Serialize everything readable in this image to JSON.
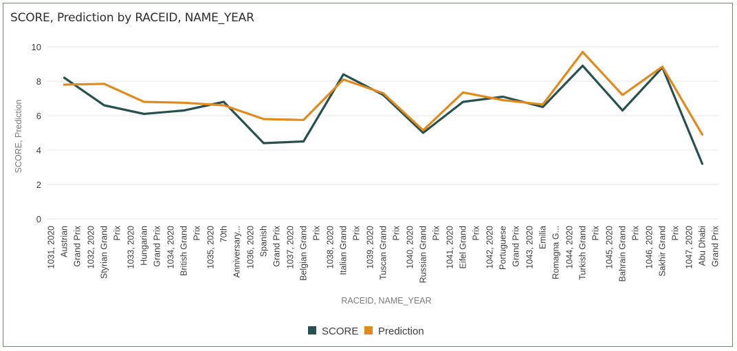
{
  "chart_data": {
    "type": "line",
    "title": "SCORE, Prediction by RACEID, NAME_YEAR",
    "xlabel": "RACEID, NAME_YEAR",
    "ylabel": "SCORE, Prediction",
    "ylim": [
      0,
      10
    ],
    "yticks": [
      0,
      2,
      4,
      6,
      8,
      10
    ],
    "grid": true,
    "legend_position": "bottom",
    "categories": [
      "1031, 2020|Austrian|Grand Prix",
      "1032, 2020|Styrian Grand|Prix",
      "1033, 2020|Hungarian|Grand Prix",
      "1034, 2020|British Grand|Prix",
      "1035, 2020|70th|Anniversary...",
      "1036, 2020|Spanish|Grand Prix",
      "1037, 2020|Belgian Grand|Prix",
      "1038, 2020|Italian Grand|Prix",
      "1039, 2020|Tuscan Grand|Prix",
      "1040, 2020|Russian Grand|Prix",
      "1041, 2020|Eifel Grand|Prix",
      "1042, 2020|Portuguese|Grand Prix",
      "1043, 2020|Emilia|Romagna G...",
      "1044, 2020|Turkish Grand|Prix",
      "1045, 2020|Bahrain Grand|Prix",
      "1046, 2020|Sakhir Grand|Prix",
      "1047, 2020|Abu Dhabi|Grand Prix"
    ],
    "series": [
      {
        "name": "SCORE",
        "color": "#27504f",
        "values": [
          8.2,
          6.6,
          6.1,
          6.3,
          6.8,
          4.4,
          4.5,
          8.4,
          7.2,
          5.0,
          6.8,
          7.1,
          6.5,
          8.9,
          6.3,
          8.8,
          3.2
        ]
      },
      {
        "name": "Prediction",
        "color": "#e08a1e",
        "values": [
          7.8,
          7.85,
          6.8,
          6.75,
          6.6,
          5.8,
          5.75,
          8.1,
          7.3,
          5.15,
          7.35,
          6.9,
          6.65,
          9.7,
          7.2,
          8.85,
          4.9
        ]
      }
    ]
  }
}
